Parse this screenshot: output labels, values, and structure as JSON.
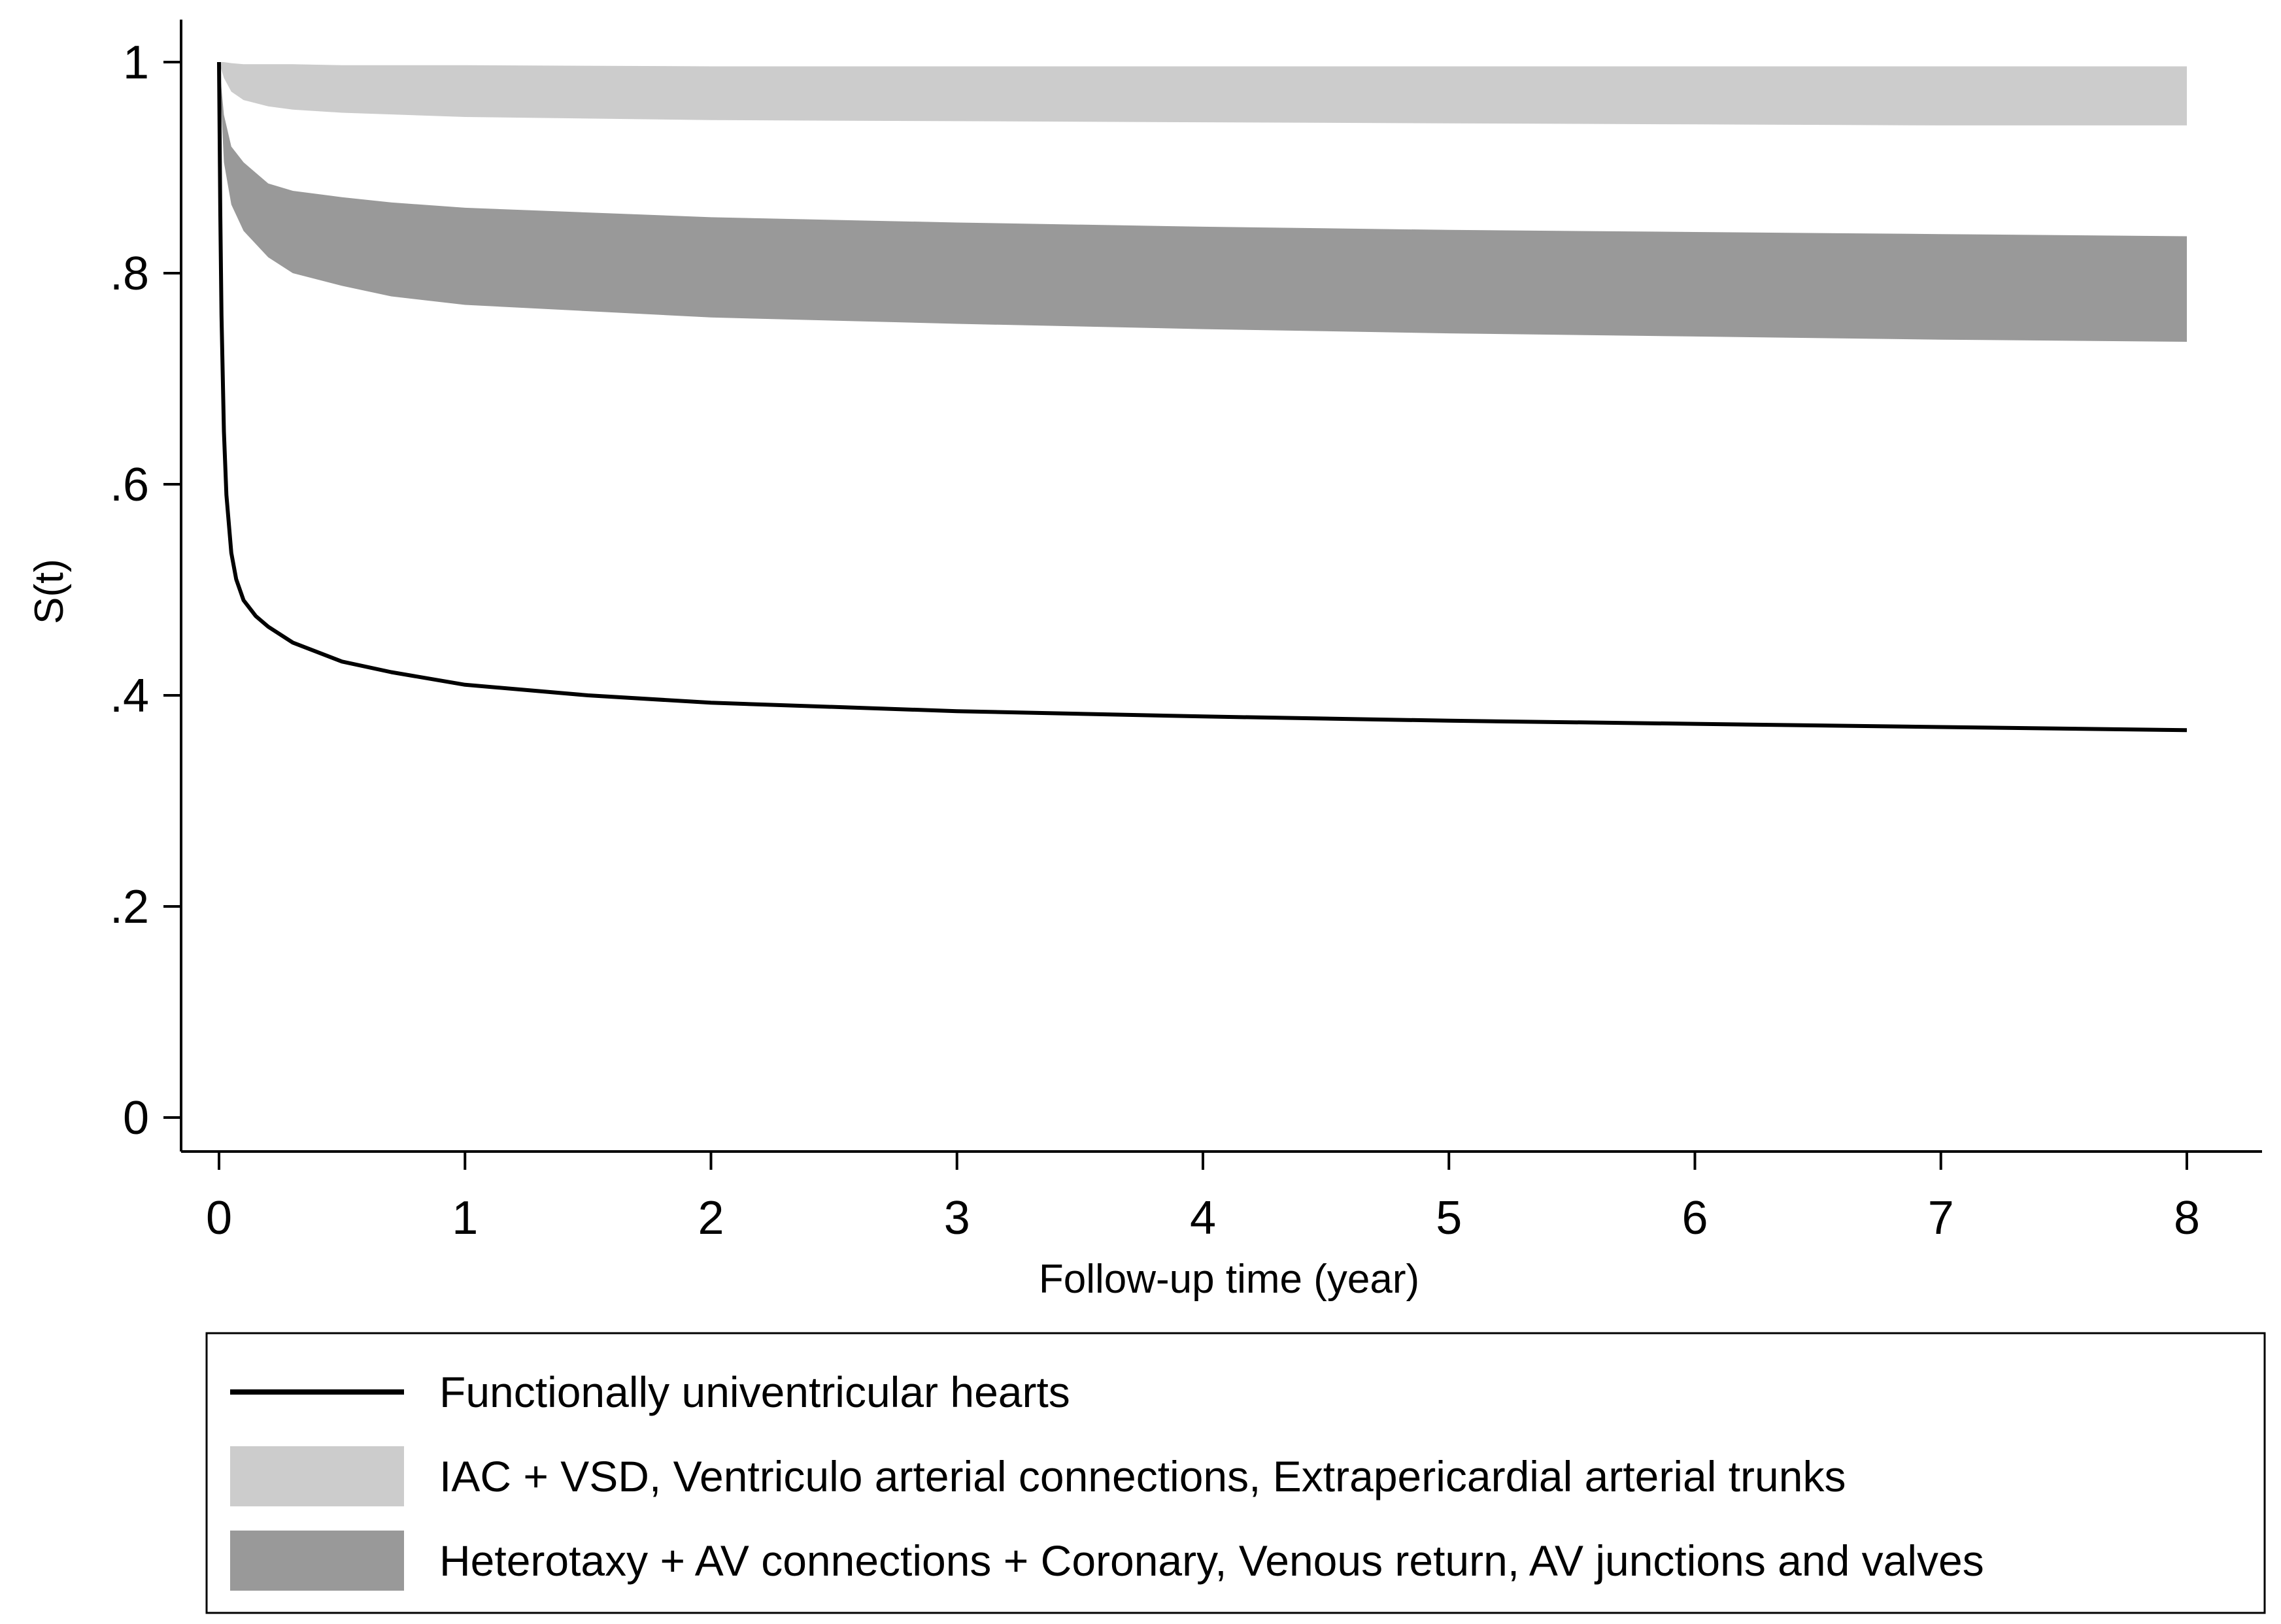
{
  "chart_data": {
    "type": "line",
    "title": "",
    "xlabel": "Follow-up time (year)",
    "ylabel": "S(t)",
    "xlim": [
      0,
      8
    ],
    "ylim": [
      0,
      1
    ],
    "x_ticks": [
      {
        "value": 0,
        "label": "0"
      },
      {
        "value": 1,
        "label": "1"
      },
      {
        "value": 2,
        "label": "2"
      },
      {
        "value": 3,
        "label": "3"
      },
      {
        "value": 4,
        "label": "4"
      },
      {
        "value": 5,
        "label": "5"
      },
      {
        "value": 6,
        "label": "6"
      },
      {
        "value": 7,
        "label": "7"
      },
      {
        "value": 8,
        "label": "8"
      }
    ],
    "y_ticks": [
      {
        "value": 0,
        "label": "0"
      },
      {
        "value": 0.2,
        "label": ".2"
      },
      {
        "value": 0.4,
        "label": ".4"
      },
      {
        "value": 0.6,
        "label": ".6"
      },
      {
        "value": 0.8,
        "label": ".8"
      },
      {
        "value": 1,
        "label": "1"
      }
    ],
    "grid": false,
    "legend_position": "bottom",
    "series": [
      {
        "name": "Functionally univentricular hearts",
        "kind": "line",
        "color": "#000000",
        "x": [
          0,
          0.005,
          0.01,
          0.02,
          0.03,
          0.05,
          0.07,
          0.1,
          0.15,
          0.2,
          0.3,
          0.5,
          0.7,
          1,
          1.5,
          2,
          3,
          4,
          5,
          6,
          7,
          8
        ],
        "y": [
          1.0,
          0.86,
          0.76,
          0.65,
          0.59,
          0.535,
          0.51,
          0.49,
          0.475,
          0.465,
          0.45,
          0.432,
          0.422,
          0.41,
          0.4,
          0.393,
          0.385,
          0.38,
          0.376,
          0.373,
          0.37,
          0.367
        ]
      },
      {
        "name": "IAC + VSD, Ventriculo arterial connections, Extrapericardial arterial trunks",
        "kind": "band",
        "color": "#cccccc",
        "x": [
          0,
          0.02,
          0.05,
          0.1,
          0.2,
          0.3,
          0.5,
          1,
          2,
          3,
          4,
          5,
          6,
          7,
          8
        ],
        "upper": [
          1.0,
          1.0,
          0.999,
          0.998,
          0.998,
          0.998,
          0.997,
          0.997,
          0.996,
          0.996,
          0.996,
          0.996,
          0.996,
          0.996,
          0.996
        ],
        "lower": [
          1.0,
          0.985,
          0.972,
          0.964,
          0.958,
          0.955,
          0.952,
          0.948,
          0.945,
          0.944,
          0.943,
          0.942,
          0.941,
          0.94,
          0.94
        ]
      },
      {
        "name": "Heterotaxy + AV connections + Coronary, Venous return, AV junctions and valves",
        "kind": "band",
        "color": "#999999",
        "x": [
          0,
          0.02,
          0.05,
          0.1,
          0.2,
          0.3,
          0.5,
          0.7,
          1,
          2,
          3,
          4,
          5,
          6,
          7,
          8
        ],
        "upper": [
          1.0,
          0.95,
          0.92,
          0.905,
          0.885,
          0.878,
          0.872,
          0.867,
          0.862,
          0.853,
          0.848,
          0.844,
          0.841,
          0.839,
          0.837,
          0.835
        ],
        "lower": [
          1.0,
          0.905,
          0.865,
          0.84,
          0.815,
          0.8,
          0.788,
          0.778,
          0.77,
          0.758,
          0.752,
          0.747,
          0.743,
          0.74,
          0.737,
          0.735
        ]
      }
    ]
  }
}
